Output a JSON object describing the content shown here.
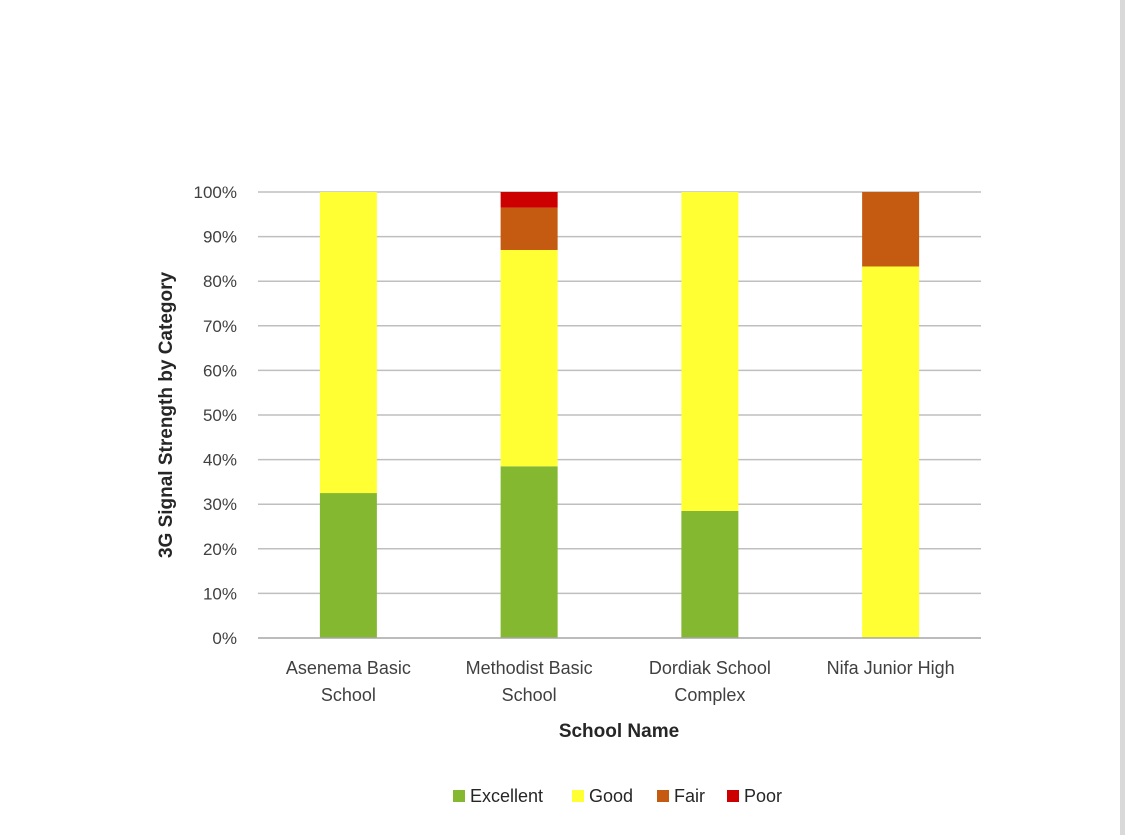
{
  "chart_data": {
    "type": "bar",
    "stacked": true,
    "percent_stacked": true,
    "title": "",
    "xlabel": "School Name",
    "ylabel": "3G Signal Strength by Category",
    "ylim": [
      0,
      100
    ],
    "y_ticks": [
      "0%",
      "10%",
      "20%",
      "30%",
      "40%",
      "50%",
      "60%",
      "70%",
      "80%",
      "90%",
      "100%"
    ],
    "y_tick_values": [
      0,
      10,
      20,
      30,
      40,
      50,
      60,
      70,
      80,
      90,
      100
    ],
    "grid": "horizontal",
    "legend_position": "bottom",
    "categories": [
      [
        "Asenema Basic",
        "School"
      ],
      [
        "Methodist Basic",
        "School"
      ],
      [
        "Dordiak School",
        "Complex"
      ],
      [
        "Nifa Junior High"
      ]
    ],
    "series": [
      {
        "name": "Excellent",
        "color": "#84b831",
        "values": [
          32.5,
          38.5,
          28.5,
          0
        ]
      },
      {
        "name": "Good",
        "color": "#ffff33",
        "values": [
          67.5,
          48.5,
          71.5,
          83.3
        ]
      },
      {
        "name": "Fair",
        "color": "#c55a11",
        "values": [
          0,
          9.5,
          0,
          16.7
        ]
      },
      {
        "name": "Poor",
        "color": "#cc0000",
        "values": [
          0,
          3.5,
          0,
          0
        ]
      }
    ]
  }
}
